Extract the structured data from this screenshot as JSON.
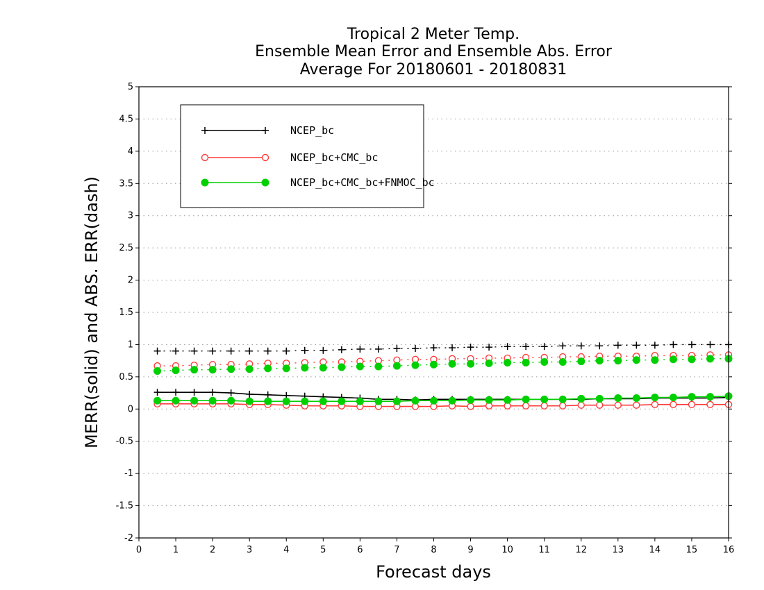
{
  "chart_data": {
    "type": "line",
    "title_lines": [
      "Tropical 2 Meter Temp.",
      "Ensemble Mean Error and Ensemble Abs. Error",
      "Average For 20180601 - 20180831"
    ],
    "xlabel": "Forecast days",
    "ylabel": "MERR(solid) and ABS. ERR(dash)",
    "xlim": [
      0,
      16
    ],
    "ylim": [
      -2,
      5
    ],
    "xticks": [
      "0",
      "1",
      "2",
      "3",
      "4",
      "5",
      "6",
      "7",
      "8",
      "9",
      "10",
      "11",
      "12",
      "13",
      "14",
      "15",
      "16"
    ],
    "yticks": [
      "-2",
      "-1.5",
      "-1",
      "-0.5",
      "0",
      "0.5",
      "1",
      "1.5",
      "2",
      "2.5",
      "3",
      "3.5",
      "4",
      "4.5",
      "5"
    ],
    "grid": true,
    "legend_position": "top-left",
    "x": [
      0.5,
      1,
      1.5,
      2,
      2.5,
      3,
      3.5,
      4,
      4.5,
      5,
      5.5,
      6,
      6.5,
      7,
      7.5,
      8,
      8.5,
      9,
      9.5,
      10,
      10.5,
      11,
      11.5,
      12,
      12.5,
      13,
      13.5,
      14,
      14.5,
      15,
      15.5,
      16
    ],
    "series": [
      {
        "name": "NCEP_bc",
        "color": "#000000",
        "marker": "plus",
        "solid": [
          0.26,
          0.26,
          0.26,
          0.26,
          0.25,
          0.23,
          0.22,
          0.21,
          0.2,
          0.19,
          0.18,
          0.17,
          0.15,
          0.15,
          0.14,
          0.15,
          0.15,
          0.15,
          0.15,
          0.15,
          0.15,
          0.15,
          0.15,
          0.15,
          0.16,
          0.16,
          0.16,
          0.17,
          0.17,
          0.17,
          0.17,
          0.18
        ],
        "dash": [
          0.9,
          0.9,
          0.9,
          0.9,
          0.9,
          0.9,
          0.9,
          0.9,
          0.91,
          0.91,
          0.92,
          0.93,
          0.93,
          0.94,
          0.94,
          0.95,
          0.95,
          0.96,
          0.96,
          0.97,
          0.97,
          0.97,
          0.98,
          0.98,
          0.98,
          0.99,
          0.99,
          0.99,
          1.0,
          1.0,
          1.0,
          1.0
        ]
      },
      {
        "name": "NCEP_bc+CMC_bc",
        "color": "#ff3b3b",
        "marker": "open-circle",
        "solid": [
          0.08,
          0.08,
          0.08,
          0.08,
          0.08,
          0.07,
          0.07,
          0.06,
          0.05,
          0.05,
          0.05,
          0.04,
          0.04,
          0.04,
          0.04,
          0.04,
          0.05,
          0.04,
          0.05,
          0.05,
          0.05,
          0.05,
          0.05,
          0.06,
          0.06,
          0.06,
          0.06,
          0.07,
          0.07,
          0.07,
          0.07,
          0.07
        ],
        "dash": [
          0.67,
          0.67,
          0.68,
          0.69,
          0.69,
          0.7,
          0.71,
          0.71,
          0.72,
          0.73,
          0.73,
          0.74,
          0.75,
          0.76,
          0.77,
          0.77,
          0.78,
          0.78,
          0.79,
          0.79,
          0.8,
          0.8,
          0.81,
          0.81,
          0.82,
          0.82,
          0.82,
          0.83,
          0.83,
          0.83,
          0.84,
          0.84
        ]
      },
      {
        "name": "NCEP_bc+CMC_bc+FNMOC_bc",
        "color": "#00d000",
        "marker": "filled-circle",
        "solid": [
          0.13,
          0.13,
          0.13,
          0.13,
          0.13,
          0.12,
          0.12,
          0.12,
          0.12,
          0.12,
          0.12,
          0.12,
          0.12,
          0.12,
          0.13,
          0.13,
          0.13,
          0.14,
          0.14,
          0.14,
          0.15,
          0.15,
          0.15,
          0.16,
          0.16,
          0.17,
          0.17,
          0.18,
          0.18,
          0.19,
          0.19,
          0.2
        ],
        "dash": [
          0.59,
          0.6,
          0.61,
          0.61,
          0.62,
          0.62,
          0.63,
          0.63,
          0.64,
          0.64,
          0.65,
          0.66,
          0.66,
          0.67,
          0.68,
          0.69,
          0.7,
          0.7,
          0.71,
          0.72,
          0.72,
          0.73,
          0.73,
          0.74,
          0.75,
          0.75,
          0.76,
          0.76,
          0.77,
          0.77,
          0.78,
          0.78
        ]
      }
    ]
  }
}
